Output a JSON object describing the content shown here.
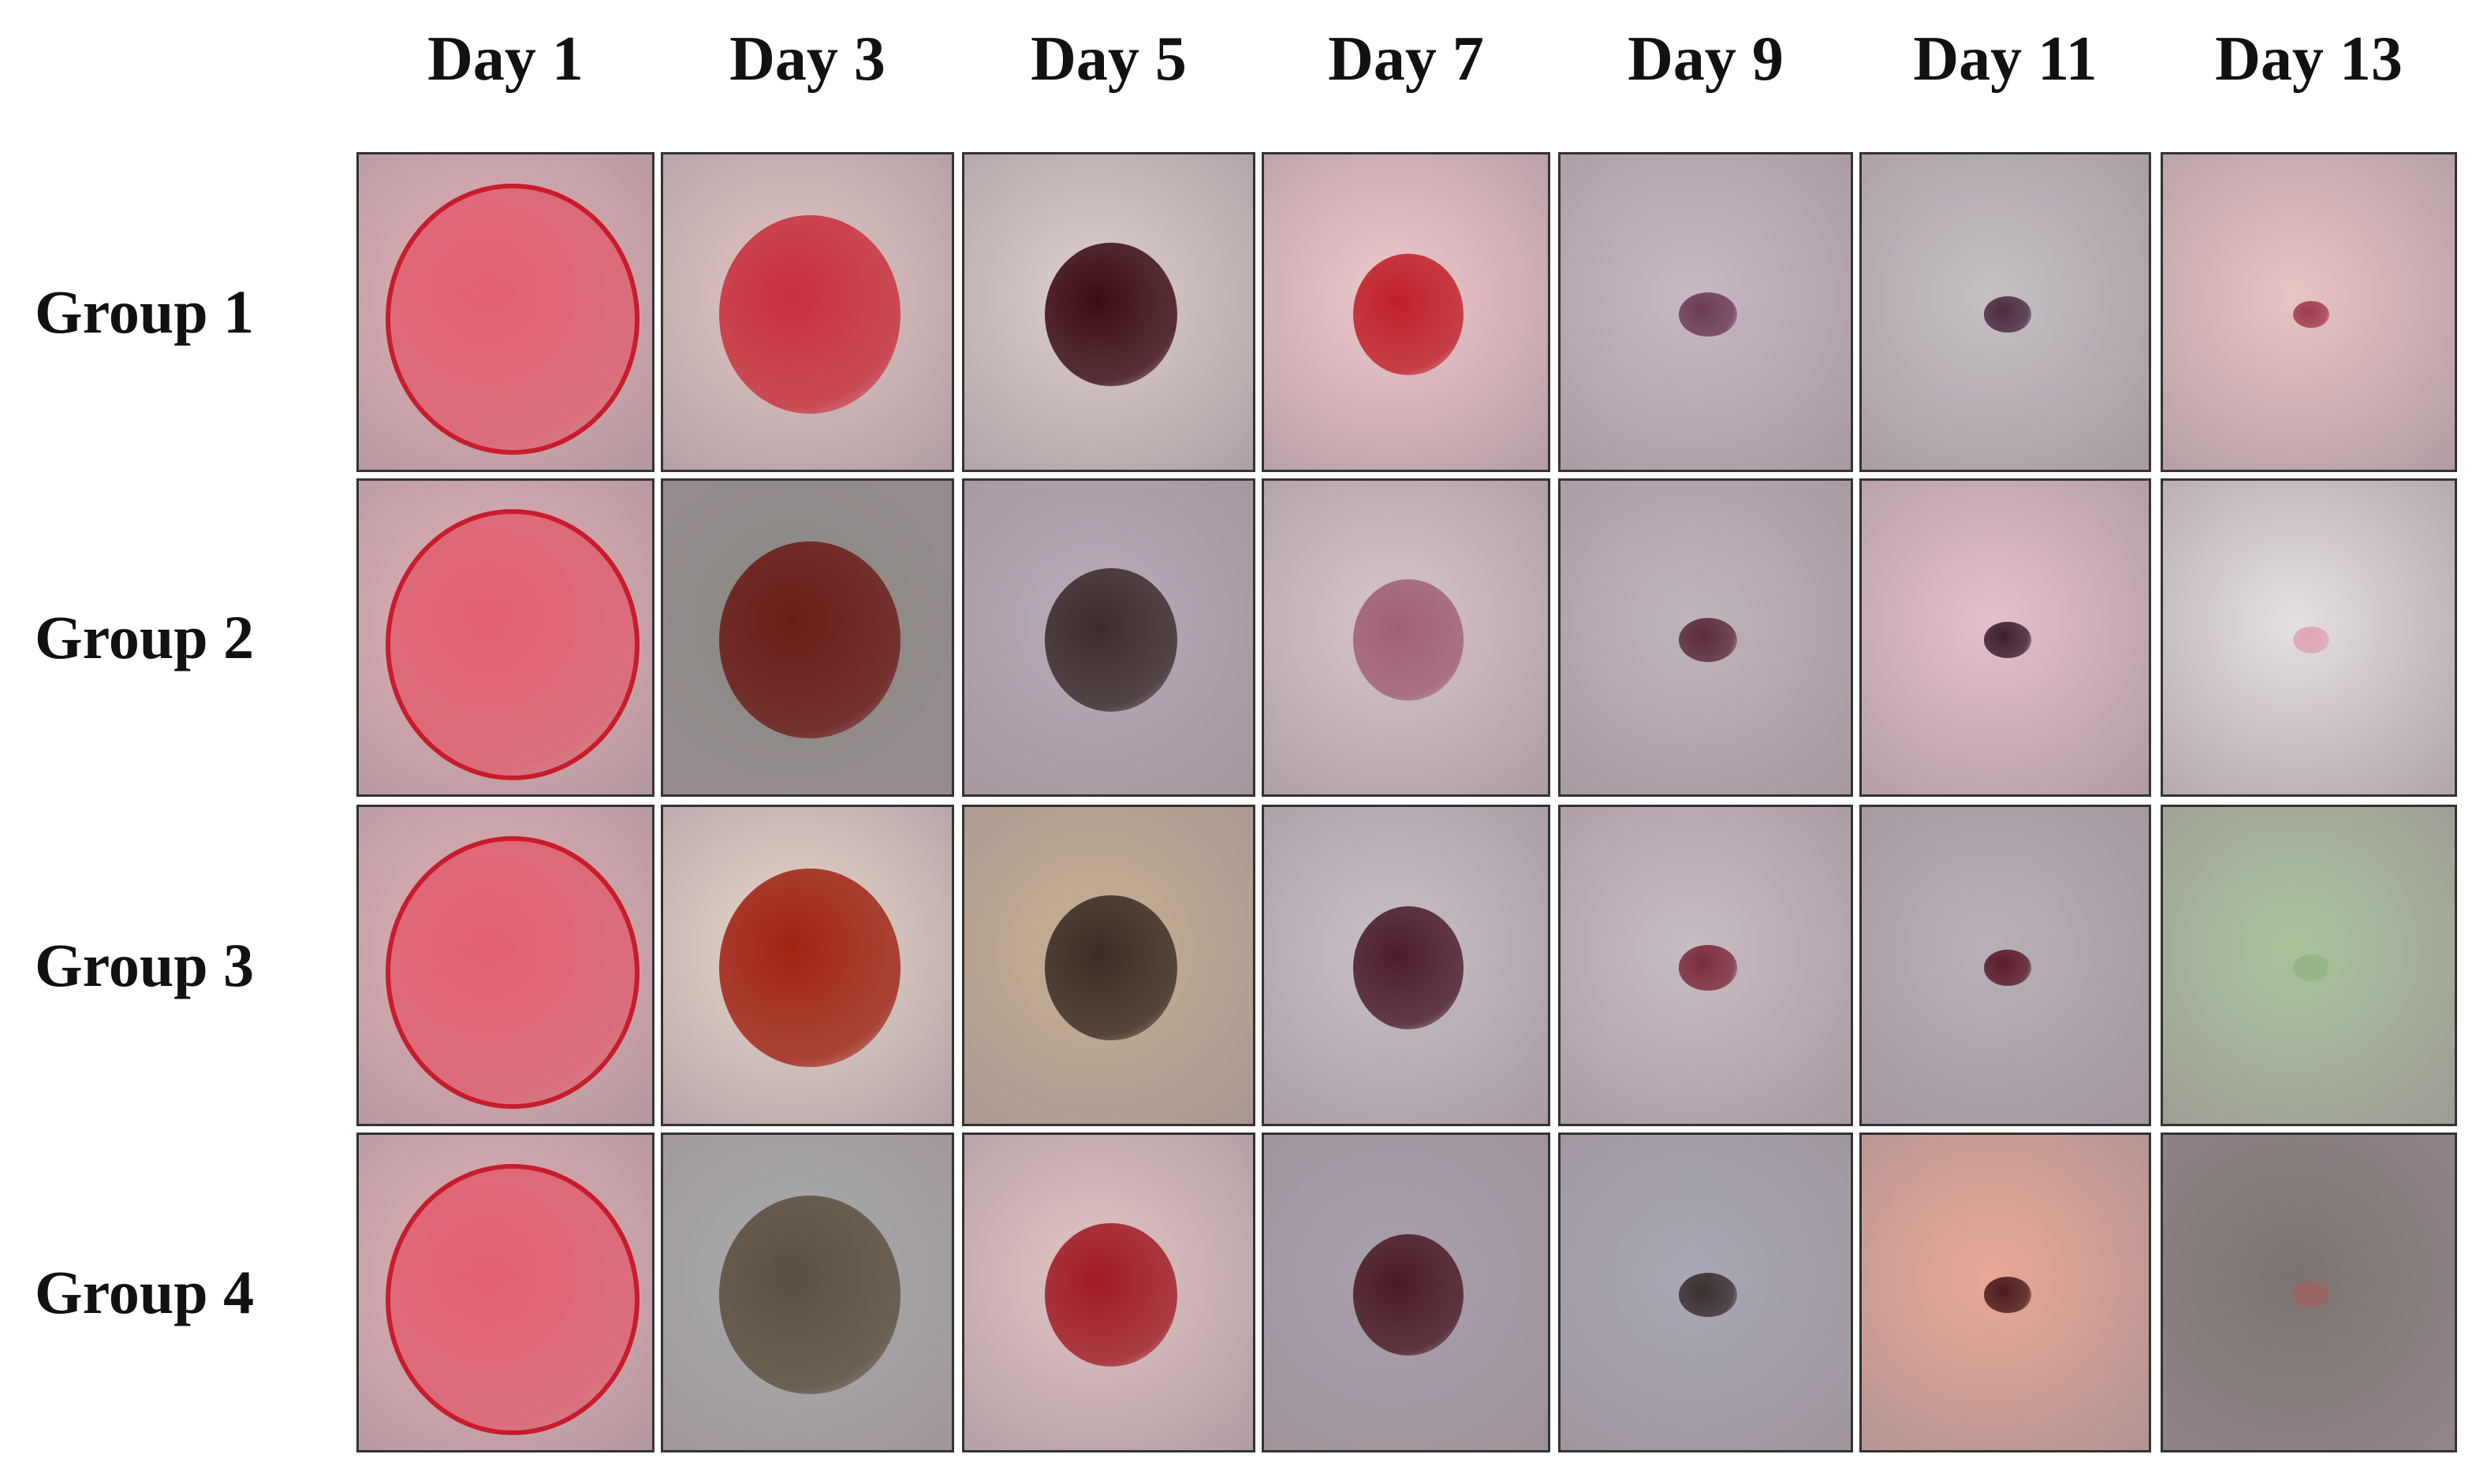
{
  "columns": [
    "Day 1",
    "Day 3",
    "Day 5",
    "Day 7",
    "Day 9",
    "Day 11",
    "Day 13"
  ],
  "rows": [
    "Group 1",
    "Group 2",
    "Group 3",
    "Group 4"
  ]
}
